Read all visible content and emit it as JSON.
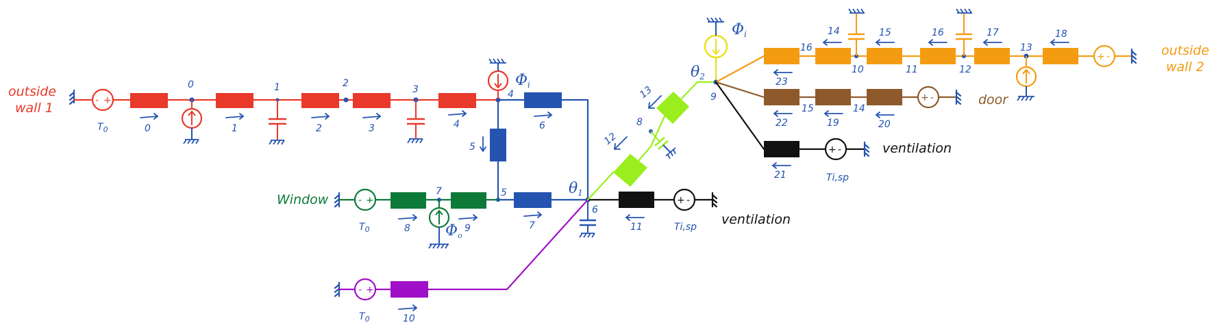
{
  "labels": {
    "outside_wall_1": [
      "outside",
      "wall 1"
    ],
    "outside_wall_2": [
      "outside",
      "wall 2"
    ],
    "window": "Window",
    "door": "door",
    "ventilation_1": "ventilation",
    "ventilation_2": "ventilation"
  },
  "sources": {
    "T0": "T",
    "T0_sub": "0",
    "Tisp": "Ti,sp",
    "phi_i": "Φ",
    "phi_i_sub": "i",
    "phi_o": "Φ",
    "phi_o_sub": "o",
    "theta1": "θ",
    "theta1_sub": "1",
    "theta2": "θ",
    "theta2_sub": "2"
  },
  "nodes": [
    "0",
    "1",
    "2",
    "3",
    "4",
    "5",
    "6",
    "7",
    "8",
    "9",
    "10",
    "11",
    "12",
    "13",
    "14",
    "15",
    "16"
  ],
  "branches": [
    "0",
    "1",
    "2",
    "3",
    "4",
    "5",
    "6",
    "7",
    "8",
    "9",
    "10",
    "11",
    "12",
    "13",
    "14",
    "15",
    "16",
    "17",
    "18",
    "19",
    "20",
    "21",
    "22",
    "23"
  ],
  "colors": {
    "wall1": "#e8392a",
    "wall2": "#f39c12",
    "window": "#0e7a3a",
    "interior": "#2453b0",
    "green_link": "#9aee1e",
    "purple": "#a010c8",
    "door": "#8e5a2b",
    "ventilation": "#111111",
    "yellow": "#e9e020"
  }
}
